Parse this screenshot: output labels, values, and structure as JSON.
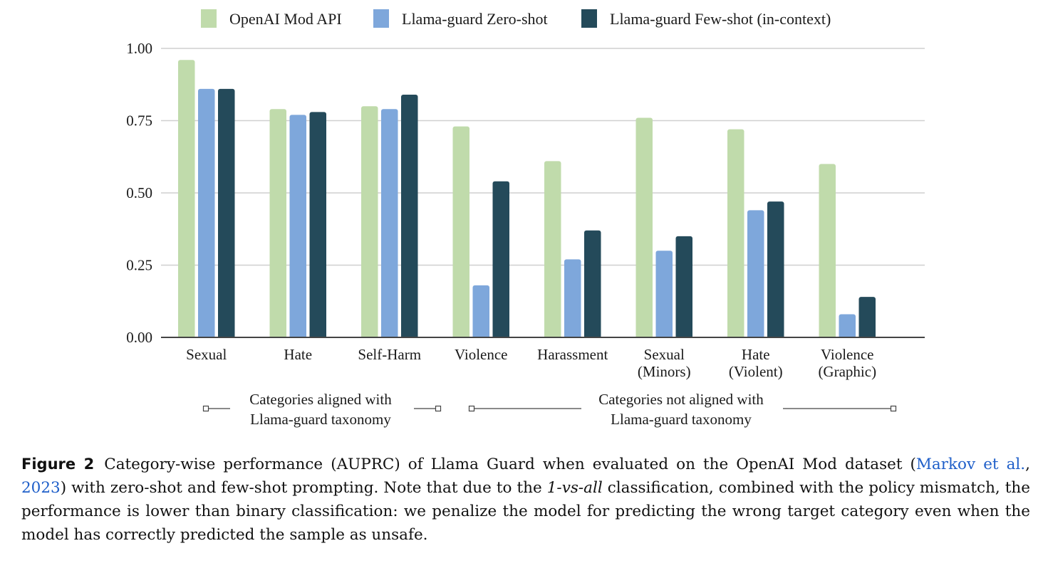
{
  "chart_data": {
    "type": "bar",
    "categories": [
      [
        "Sexual"
      ],
      [
        "Hate"
      ],
      [
        "Self-Harm"
      ],
      [
        "Violence"
      ],
      [
        "Harassment"
      ],
      [
        "Sexual",
        "(Minors)"
      ],
      [
        "Hate",
        "(Violent)"
      ],
      [
        "Violence",
        "(Graphic)"
      ]
    ],
    "series": [
      {
        "name": "OpenAI Mod API",
        "color": "#c0dbab",
        "values": [
          0.96,
          0.79,
          0.8,
          0.73,
          0.61,
          0.76,
          0.72,
          0.6
        ]
      },
      {
        "name": "Llama-guard Zero-shot",
        "color": "#7ea7db",
        "values": [
          0.86,
          0.77,
          0.79,
          0.18,
          0.27,
          0.3,
          0.44,
          0.08
        ]
      },
      {
        "name": "Llama-guard Few-shot (in-context)",
        "color": "#244a5a",
        "values": [
          0.86,
          0.78,
          0.84,
          0.54,
          0.37,
          0.35,
          0.47,
          0.14
        ]
      }
    ],
    "yticks": [
      "0.00",
      "0.25",
      "0.50",
      "0.75",
      "1.00"
    ],
    "ylim": [
      0,
      1
    ],
    "grid": true,
    "legend": "top-center",
    "groups": [
      {
        "label": [
          "Categories aligned with",
          "Llama-guard taxonomy"
        ]
      },
      {
        "label": [
          "Categories not aligned with",
          "Llama-guard taxonomy"
        ]
      }
    ]
  },
  "caption": {
    "label": "Figure 2",
    "text1": "Category-wise performance (AUPRC) of Llama Guard when evaluated on the OpenAI Mod dataset (",
    "link1": "Markov et al.",
    "sep": ", ",
    "link2": "2023",
    "text2": ") with zero-shot and few-shot prompting. Note that due to the ",
    "italic": "1-vs-all",
    "text3": " classification, combined with the policy mismatch, the performance is lower than binary classification: we penalize the model for predicting the wrong target category even when the model has correctly predicted the sample as unsafe."
  }
}
